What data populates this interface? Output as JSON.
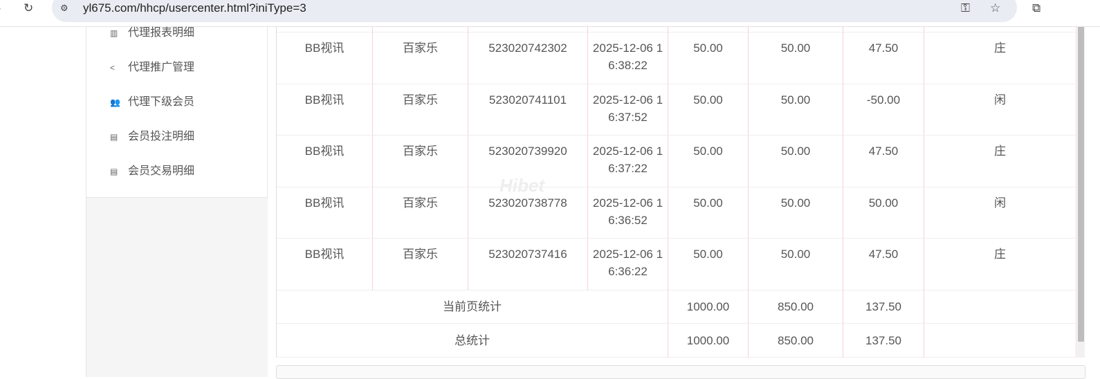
{
  "browser": {
    "url": "yl675.com/hhcp/usercenter.html?iniType=3"
  },
  "sidebar": {
    "items": [
      {
        "label": "代理报表明细",
        "icon": "report-icon"
      },
      {
        "label": "代理推广管理",
        "icon": "share-icon"
      },
      {
        "label": "代理下级会员",
        "icon": "users-icon"
      },
      {
        "label": "会员投注明细",
        "icon": "clipboard-icon"
      },
      {
        "label": "会员交易明细",
        "icon": "list-icon"
      }
    ]
  },
  "table": {
    "rows": [
      [
        "BB视讯",
        "百家乐",
        "523020742302",
        "2025-12-06 16:38:22",
        "50.00",
        "50.00",
        "47.50",
        "庄"
      ],
      [
        "BB视讯",
        "百家乐",
        "523020741101",
        "2025-12-06 16:37:52",
        "50.00",
        "50.00",
        "-50.00",
        "闲"
      ],
      [
        "BB视讯",
        "百家乐",
        "523020739920",
        "2025-12-06 16:37:22",
        "50.00",
        "50.00",
        "47.50",
        "庄"
      ],
      [
        "BB视讯",
        "百家乐",
        "523020738778",
        "2025-12-06 16:36:52",
        "50.00",
        "50.00",
        "50.00",
        "闲"
      ],
      [
        "BB视讯",
        "百家乐",
        "523020737416",
        "2025-12-06 16:36:22",
        "50.00",
        "50.00",
        "47.50",
        "庄"
      ]
    ],
    "summary": [
      {
        "label": "当前页统计",
        "values": [
          "1000.00",
          "850.00",
          "137.50",
          ""
        ]
      },
      {
        "label": "总统计",
        "values": [
          "1000.00",
          "850.00",
          "137.50",
          ""
        ]
      }
    ]
  },
  "watermark": "Hibet"
}
